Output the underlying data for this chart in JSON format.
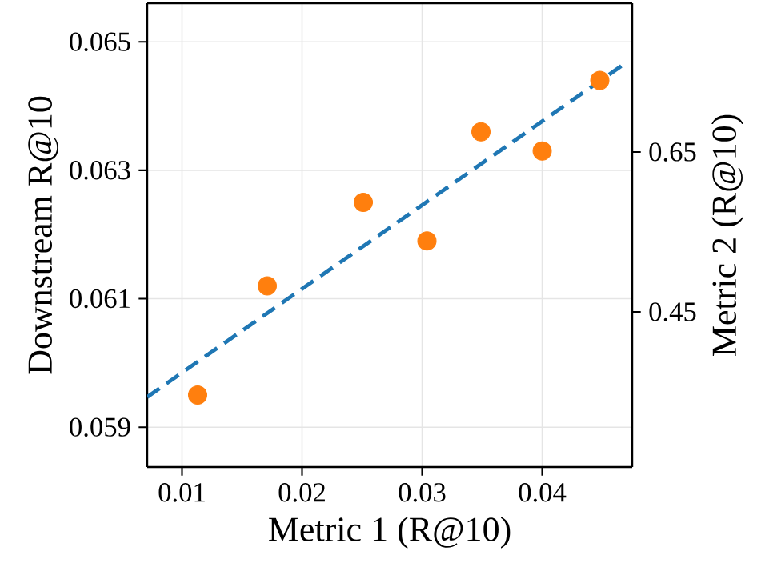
{
  "chart_data": {
    "type": "scatter",
    "xlabel": "Metric 1 (R@10)",
    "ylabel": "Downstream R@10",
    "y2label": "Metric 2 (R@10)",
    "series": [
      {
        "color": "#ff7f0e",
        "marker": "circle",
        "x": [
          0.0113,
          0.0171,
          0.0251,
          0.0304,
          0.0349,
          0.04,
          0.0448
        ],
        "values": [
          0.0595,
          0.0612,
          0.0625,
          0.0619,
          0.0636,
          0.0633,
          0.0644
        ]
      },
      {
        "type": "line",
        "color": "#1f77b4",
        "line_style": "dashed",
        "marker": "none",
        "x": [
          0.0071,
          0.0471
        ],
        "values": [
          0.05947,
          0.06469
        ]
      }
    ],
    "xlim": [
      0.0071,
      0.0475
    ],
    "xticks": [
      0.01,
      0.02,
      0.03,
      0.04
    ],
    "ylim": [
      0.05838,
      0.0656
    ],
    "yticks": [
      0.059,
      0.061,
      0.063,
      0.065
    ],
    "y2lim": [
      0.256,
      0.836
    ],
    "y2ticks": [
      0.45,
      0.65
    ],
    "grid": true
  }
}
